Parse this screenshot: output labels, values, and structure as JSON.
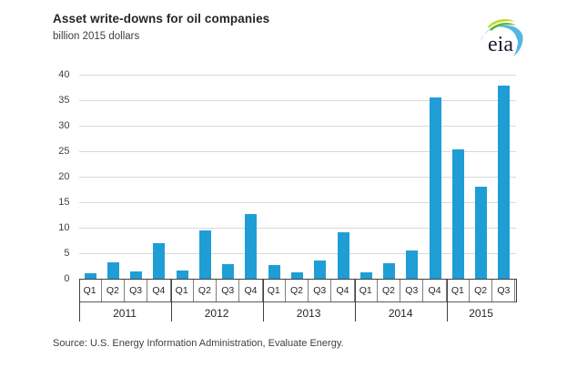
{
  "header": {
    "title": "Asset write-downs for oil companies",
    "subtitle": "billion 2015 dollars",
    "logo_text": "eia"
  },
  "footer": {
    "source": "Source:  U.S. Energy Information Administration, Evaluate Energy."
  },
  "colors": {
    "bar": "#1f9ed6",
    "gridline": "#d9d9d9",
    "axis": "#404040",
    "box_line": "#808080",
    "title_text": "#262626",
    "muted_text": "#3f3f3f",
    "logo_green": "#5bb947",
    "logo_lime": "#c5d92d",
    "logo_blue": "#54b7e3",
    "logo_text_color": "#1b1b35"
  },
  "chart_data": {
    "type": "bar",
    "title": "Asset write-downs for oil companies",
    "ylabel": "billion 2015 dollars",
    "xlabel": "",
    "ylim": [
      0,
      40
    ],
    "ytick_step": 5,
    "yticks": [
      0,
      5,
      10,
      15,
      20,
      25,
      30,
      35,
      40
    ],
    "grid": "horizontal",
    "legend": "none",
    "x_groups": [
      {
        "year": "2011",
        "quarters": [
          "Q1",
          "Q2",
          "Q3",
          "Q4"
        ]
      },
      {
        "year": "2012",
        "quarters": [
          "Q1",
          "Q2",
          "Q3",
          "Q4"
        ]
      },
      {
        "year": "2013",
        "quarters": [
          "Q1",
          "Q2",
          "Q3",
          "Q4"
        ]
      },
      {
        "year": "2014",
        "quarters": [
          "Q1",
          "Q2",
          "Q3",
          "Q4"
        ]
      },
      {
        "year": "2015",
        "quarters": [
          "Q1",
          "Q2",
          "Q3"
        ]
      }
    ],
    "categories": [
      "2011 Q1",
      "2011 Q2",
      "2011 Q3",
      "2011 Q4",
      "2012 Q1",
      "2012 Q2",
      "2012 Q3",
      "2012 Q4",
      "2013 Q1",
      "2013 Q2",
      "2013 Q3",
      "2013 Q4",
      "2014 Q1",
      "2014 Q2",
      "2014 Q3",
      "2014 Q4",
      "2015 Q1",
      "2015 Q2",
      "2015 Q3"
    ],
    "values": [
      1.1,
      3.2,
      1.4,
      6.9,
      1.6,
      9.5,
      2.9,
      12.7,
      2.6,
      1.3,
      3.6,
      9.1,
      1.2,
      3.0,
      5.5,
      35.6,
      25.4,
      18.1,
      37.9
    ]
  }
}
